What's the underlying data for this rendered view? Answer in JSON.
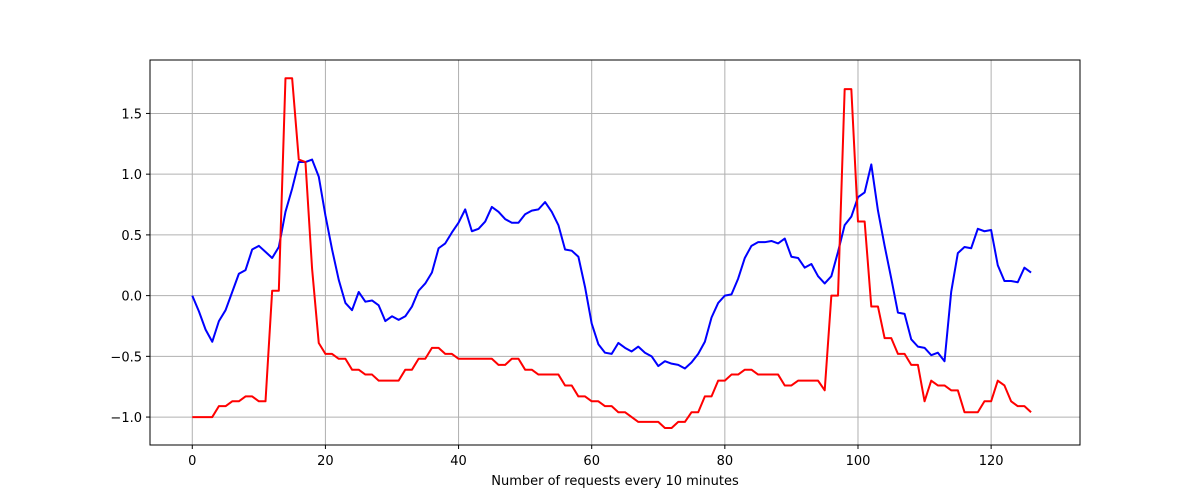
{
  "chart_data": {
    "type": "line",
    "title": "",
    "xlabel": "Number of requests every 10 minutes",
    "ylabel": "",
    "xlim": [
      -6.35,
      133.35
    ],
    "ylim": [
      -1.23,
      1.94
    ],
    "xticks": [
      0,
      20,
      40,
      60,
      80,
      100,
      120
    ],
    "xtick_labels": [
      "0",
      "20",
      "40",
      "60",
      "80",
      "100",
      "120"
    ],
    "yticks": [
      -1.0,
      -0.5,
      0.0,
      0.5,
      1.0,
      1.5
    ],
    "ytick_labels": [
      "−1.0",
      "−0.5",
      "0.0",
      "0.5",
      "1.0",
      "1.5"
    ],
    "grid": true,
    "legend": "none",
    "series": [
      {
        "color": "#0000ff",
        "x": [
          0,
          1,
          2,
          3,
          4,
          5,
          6,
          7,
          8,
          9,
          10,
          11,
          12,
          13,
          14,
          15,
          16,
          17,
          18,
          19,
          20,
          21,
          22,
          23,
          24,
          25,
          26,
          27,
          28,
          29,
          30,
          31,
          32,
          33,
          34,
          35,
          36,
          37,
          38,
          39,
          40,
          41,
          42,
          43,
          44,
          45,
          46,
          47,
          48,
          49,
          50,
          51,
          52,
          53,
          54,
          55,
          56,
          57,
          58,
          59,
          60,
          61,
          62,
          63,
          64,
          65,
          66,
          67,
          68,
          69,
          70,
          71,
          72,
          73,
          74,
          75,
          76,
          77,
          78,
          79,
          80,
          81,
          82,
          83,
          84,
          85,
          86,
          87,
          88,
          89,
          90,
          91,
          92,
          93,
          94,
          95,
          96,
          97,
          98,
          99,
          100,
          101,
          102,
          103,
          104,
          105,
          106,
          107,
          108,
          109,
          110,
          111,
          112,
          113,
          114,
          115,
          116,
          117,
          118,
          119,
          120,
          121,
          122,
          123,
          124,
          125,
          126
        ],
        "values": [
          0.0,
          -0.13,
          -0.28,
          -0.38,
          -0.21,
          -0.12,
          0.03,
          0.18,
          0.21,
          0.38,
          0.41,
          0.36,
          0.31,
          0.4,
          0.69,
          0.88,
          1.1,
          1.1,
          1.12,
          0.98,
          0.66,
          0.38,
          0.13,
          -0.06,
          -0.12,
          0.03,
          -0.05,
          -0.04,
          -0.08,
          -0.21,
          -0.17,
          -0.2,
          -0.17,
          -0.09,
          0.04,
          0.1,
          0.19,
          0.39,
          0.43,
          0.52,
          0.6,
          0.71,
          0.53,
          0.55,
          0.61,
          0.73,
          0.69,
          0.63,
          0.6,
          0.6,
          0.67,
          0.7,
          0.71,
          0.77,
          0.69,
          0.58,
          0.38,
          0.37,
          0.32,
          0.07,
          -0.23,
          -0.4,
          -0.47,
          -0.48,
          -0.39,
          -0.43,
          -0.46,
          -0.42,
          -0.47,
          -0.5,
          -0.58,
          -0.54,
          -0.56,
          -0.57,
          -0.6,
          -0.55,
          -0.48,
          -0.38,
          -0.18,
          -0.06,
          0.0,
          0.01,
          0.14,
          0.31,
          0.41,
          0.44,
          0.44,
          0.45,
          0.43,
          0.47,
          0.32,
          0.31,
          0.23,
          0.26,
          0.16,
          0.1,
          0.16,
          0.36,
          0.58,
          0.65,
          0.81,
          0.85,
          1.08,
          0.7,
          0.41,
          0.14,
          -0.14,
          -0.15,
          -0.36,
          -0.42,
          -0.43,
          -0.49,
          -0.47,
          -0.54,
          0.03,
          0.35,
          0.4,
          0.39,
          0.55,
          0.53,
          0.54,
          0.25,
          0.12,
          0.12,
          0.11,
          0.23,
          0.19
        ]
      },
      {
        "color": "#ff0000",
        "x": [
          0,
          1,
          2,
          3,
          4,
          5,
          6,
          7,
          8,
          9,
          10,
          11,
          12,
          13,
          14,
          15,
          16,
          17,
          18,
          19,
          20,
          21,
          22,
          23,
          24,
          25,
          26,
          27,
          28,
          29,
          30,
          31,
          32,
          33,
          34,
          35,
          36,
          37,
          38,
          39,
          40,
          41,
          42,
          43,
          44,
          45,
          46,
          47,
          48,
          49,
          50,
          51,
          52,
          53,
          54,
          55,
          56,
          57,
          58,
          59,
          60,
          61,
          62,
          63,
          64,
          65,
          66,
          67,
          68,
          69,
          70,
          71,
          72,
          73,
          74,
          75,
          76,
          77,
          78,
          79,
          80,
          81,
          82,
          83,
          84,
          85,
          86,
          87,
          88,
          89,
          90,
          91,
          92,
          93,
          94,
          95,
          96,
          97,
          98,
          99,
          100,
          101,
          102,
          103,
          104,
          105,
          106,
          107,
          108,
          109,
          110,
          111,
          112,
          113,
          114,
          115,
          116,
          117,
          118,
          119,
          120,
          121,
          122,
          123,
          124,
          125,
          126
        ],
        "values": [
          -1.0,
          -1.0,
          -1.0,
          -1.0,
          -0.91,
          -0.91,
          -0.87,
          -0.87,
          -0.83,
          -0.83,
          -0.87,
          -0.87,
          0.04,
          0.04,
          1.79,
          1.79,
          1.12,
          1.1,
          0.22,
          -0.39,
          -0.48,
          -0.48,
          -0.52,
          -0.52,
          -0.61,
          -0.61,
          -0.65,
          -0.65,
          -0.7,
          -0.7,
          -0.7,
          -0.7,
          -0.61,
          -0.61,
          -0.52,
          -0.52,
          -0.43,
          -0.43,
          -0.48,
          -0.48,
          -0.52,
          -0.52,
          -0.52,
          -0.52,
          -0.52,
          -0.52,
          -0.57,
          -0.57,
          -0.52,
          -0.52,
          -0.61,
          -0.61,
          -0.65,
          -0.65,
          -0.65,
          -0.65,
          -0.74,
          -0.74,
          -0.83,
          -0.83,
          -0.87,
          -0.87,
          -0.91,
          -0.91,
          -0.96,
          -0.96,
          -1.0,
          -1.04,
          -1.04,
          -1.04,
          -1.04,
          -1.09,
          -1.09,
          -1.04,
          -1.04,
          -0.96,
          -0.96,
          -0.83,
          -0.83,
          -0.7,
          -0.7,
          -0.65,
          -0.65,
          -0.61,
          -0.61,
          -0.65,
          -0.65,
          -0.65,
          -0.65,
          -0.74,
          -0.74,
          -0.7,
          -0.7,
          -0.7,
          -0.7,
          -0.78,
          0.0,
          0.0,
          1.7,
          1.7,
          0.61,
          0.61,
          -0.09,
          -0.09,
          -0.35,
          -0.35,
          -0.48,
          -0.48,
          -0.57,
          -0.57,
          -0.87,
          -0.7,
          -0.74,
          -0.74,
          -0.78,
          -0.78,
          -0.96,
          -0.96,
          -0.96,
          -0.87,
          -0.87,
          -0.7,
          -0.74,
          -0.87,
          -0.91,
          -0.91,
          -0.96
        ]
      }
    ]
  }
}
